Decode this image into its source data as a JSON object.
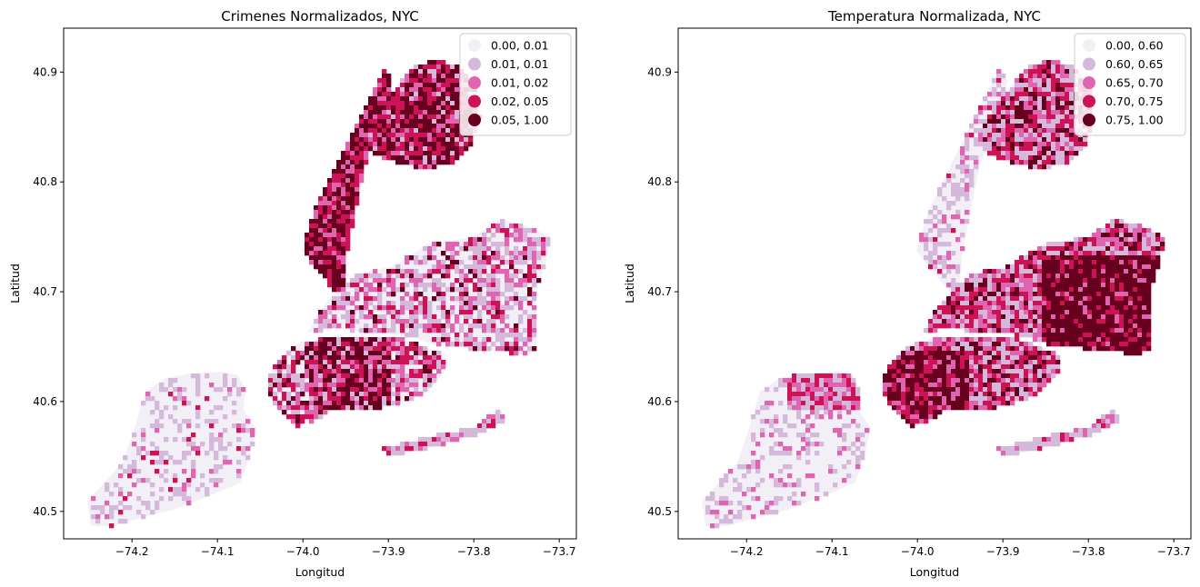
{
  "figure": {
    "panels": [
      {
        "id": "crimes",
        "title": "Crimenes Normalizados, NYC",
        "xlabel": "Longitud",
        "ylabel": "Latitud",
        "x_ticks": [
          "−74.2",
          "−74.1",
          "−74.0",
          "−73.9",
          "−73.8",
          "−73.7"
        ],
        "y_ticks": [
          "40.5",
          "40.6",
          "40.7",
          "40.8",
          "40.9"
        ],
        "legend": [
          {
            "label": "0.00, 0.01",
            "color": "#f3eff6"
          },
          {
            "label": "0.01, 0.01",
            "color": "#d4b9da"
          },
          {
            "label": "0.01, 0.02",
            "color": "#df65b0"
          },
          {
            "label": "0.02, 0.05",
            "color": "#ce1256"
          },
          {
            "label": "0.05, 1.00",
            "color": "#67001f"
          }
        ]
      },
      {
        "id": "temperature",
        "title": "Temperatura Normalizada, NYC",
        "xlabel": "Longitud",
        "ylabel": "Latitud",
        "x_ticks": [
          "−74.2",
          "−74.1",
          "−74.0",
          "−73.9",
          "−73.8",
          "−73.7"
        ],
        "y_ticks": [
          "40.5",
          "40.6",
          "40.7",
          "40.8",
          "40.9"
        ],
        "legend": [
          {
            "label": "0.00, 0.60",
            "color": "#f3eff6"
          },
          {
            "label": "0.60, 0.65",
            "color": "#d4b9da"
          },
          {
            "label": "0.65, 0.70",
            "color": "#df65b0"
          },
          {
            "label": "0.70, 0.75",
            "color": "#ce1256"
          },
          {
            "label": "0.75, 1.00",
            "color": "#67001f"
          }
        ]
      }
    ]
  },
  "chart_data": [
    {
      "type": "choropleth",
      "title": "Crimenes Normalizados, NYC",
      "xlabel": "Longitud",
      "ylabel": "Latitud",
      "xlim": [
        -74.28,
        -73.68
      ],
      "ylim": [
        40.475,
        40.94
      ],
      "xticks": [
        -74.2,
        -74.1,
        -74.0,
        -73.9,
        -73.8,
        -73.7
      ],
      "yticks": [
        40.5,
        40.6,
        40.7,
        40.8,
        40.9
      ],
      "grid": false,
      "legend_position": "top-right",
      "classes": [
        {
          "range": [
            0.0,
            0.01
          ],
          "color": "#f3eff6"
        },
        {
          "range": [
            0.01,
            0.01
          ],
          "color": "#d4b9da"
        },
        {
          "range": [
            0.01,
            0.02
          ],
          "color": "#df65b0"
        },
        {
          "range": [
            0.02,
            0.05
          ],
          "color": "#ce1256"
        },
        {
          "range": [
            0.05,
            1.0
          ],
          "color": "#67001f"
        }
      ]
    },
    {
      "type": "choropleth",
      "title": "Temperatura Normalizada, NYC",
      "xlabel": "Longitud",
      "ylabel": "Latitud",
      "xlim": [
        -74.28,
        -73.68
      ],
      "ylim": [
        40.475,
        40.94
      ],
      "xticks": [
        -74.2,
        -74.1,
        -74.0,
        -73.9,
        -73.8,
        -73.7
      ],
      "yticks": [
        40.5,
        40.6,
        40.7,
        40.8,
        40.9
      ],
      "grid": false,
      "legend_position": "top-right",
      "classes": [
        {
          "range": [
            0.0,
            0.6
          ],
          "color": "#f3eff6"
        },
        {
          "range": [
            0.6,
            0.65
          ],
          "color": "#d4b9da"
        },
        {
          "range": [
            0.65,
            0.7
          ],
          "color": "#df65b0"
        },
        {
          "range": [
            0.7,
            0.75
          ],
          "color": "#ce1256"
        },
        {
          "range": [
            0.75,
            1.0
          ],
          "color": "#67001f"
        }
      ]
    }
  ]
}
